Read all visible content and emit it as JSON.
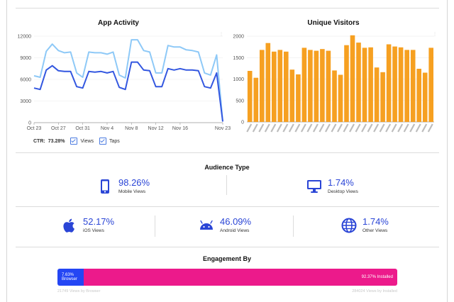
{
  "app_activity": {
    "title": "App Activity",
    "ctr_label": "CTR:",
    "ctr_value": "73.28%",
    "legend_views": "Views",
    "legend_taps": "Taps"
  },
  "unique_visitors": {
    "title": "Unique Visitors"
  },
  "audience": {
    "title": "Audience Type",
    "mobile": {
      "value": "98.26%",
      "label": "Mobile Views"
    },
    "desktop": {
      "value": "1.74%",
      "label": "Desktop Views"
    }
  },
  "platforms": {
    "ios": {
      "value": "52.17%",
      "label": "iOS Views"
    },
    "android": {
      "value": "46.09%",
      "label": "Android Views"
    },
    "other": {
      "value": "1.74%",
      "label": "Other Views"
    }
  },
  "engagement": {
    "title": "Engagement By",
    "browser_label": "7.63% Browser",
    "installed_label": "92.37% Installed",
    "browser_fraction": 0.0763,
    "browser_sub": "21749 Views by Browser",
    "installed_sub": "284024 Views by Installed"
  },
  "colors": {
    "views": "#8ec9f7",
    "taps": "#3357e0",
    "bars": "#f6a021",
    "accent": "#2a45d6",
    "browser": "#2446f4",
    "installed": "#ec1a8b"
  },
  "chart_data": [
    {
      "type": "line",
      "title": "App Activity",
      "x_ticks": [
        "Oct 23",
        "Oct 27",
        "Oct 31",
        "Nov 4",
        "Nov 8",
        "Nov 12",
        "Nov 16",
        "Nov 23"
      ],
      "y_ticks": [
        "0",
        "3000",
        "6000",
        "9000",
        "12000"
      ],
      "ylim": [
        0,
        12000
      ],
      "series": [
        {
          "name": "Views",
          "values": [
            6500,
            6300,
            9900,
            10900,
            10000,
            9700,
            9800,
            6900,
            6300,
            9800,
            9700,
            9700,
            9500,
            9800,
            6600,
            6200,
            11500,
            11500,
            10000,
            9800,
            6900,
            6900,
            10700,
            10500,
            10500,
            10100,
            10000,
            9800,
            6900,
            6600,
            9400,
            200
          ]
        },
        {
          "name": "Taps",
          "values": [
            4800,
            4600,
            7300,
            7900,
            7200,
            7100,
            7100,
            5000,
            4800,
            7100,
            7000,
            7100,
            6900,
            7100,
            4900,
            4600,
            8400,
            8400,
            7300,
            7200,
            5000,
            5000,
            7500,
            7300,
            7500,
            7300,
            7300,
            7200,
            5000,
            4800,
            6900,
            150
          ]
        }
      ]
    },
    {
      "type": "bar",
      "title": "Unique Visitors",
      "y_ticks": [
        "0",
        "500",
        "1000",
        "1500",
        "2000"
      ],
      "ylim": [
        0,
        2100
      ],
      "values": [
        1190,
        1030,
        1680,
        1840,
        1640,
        1680,
        1640,
        1220,
        1110,
        1730,
        1680,
        1660,
        1700,
        1660,
        1200,
        1100,
        1790,
        2020,
        1850,
        1730,
        1740,
        1270,
        1160,
        1810,
        1760,
        1740,
        1680,
        1680,
        1240,
        1150,
        1730
      ]
    }
  ]
}
